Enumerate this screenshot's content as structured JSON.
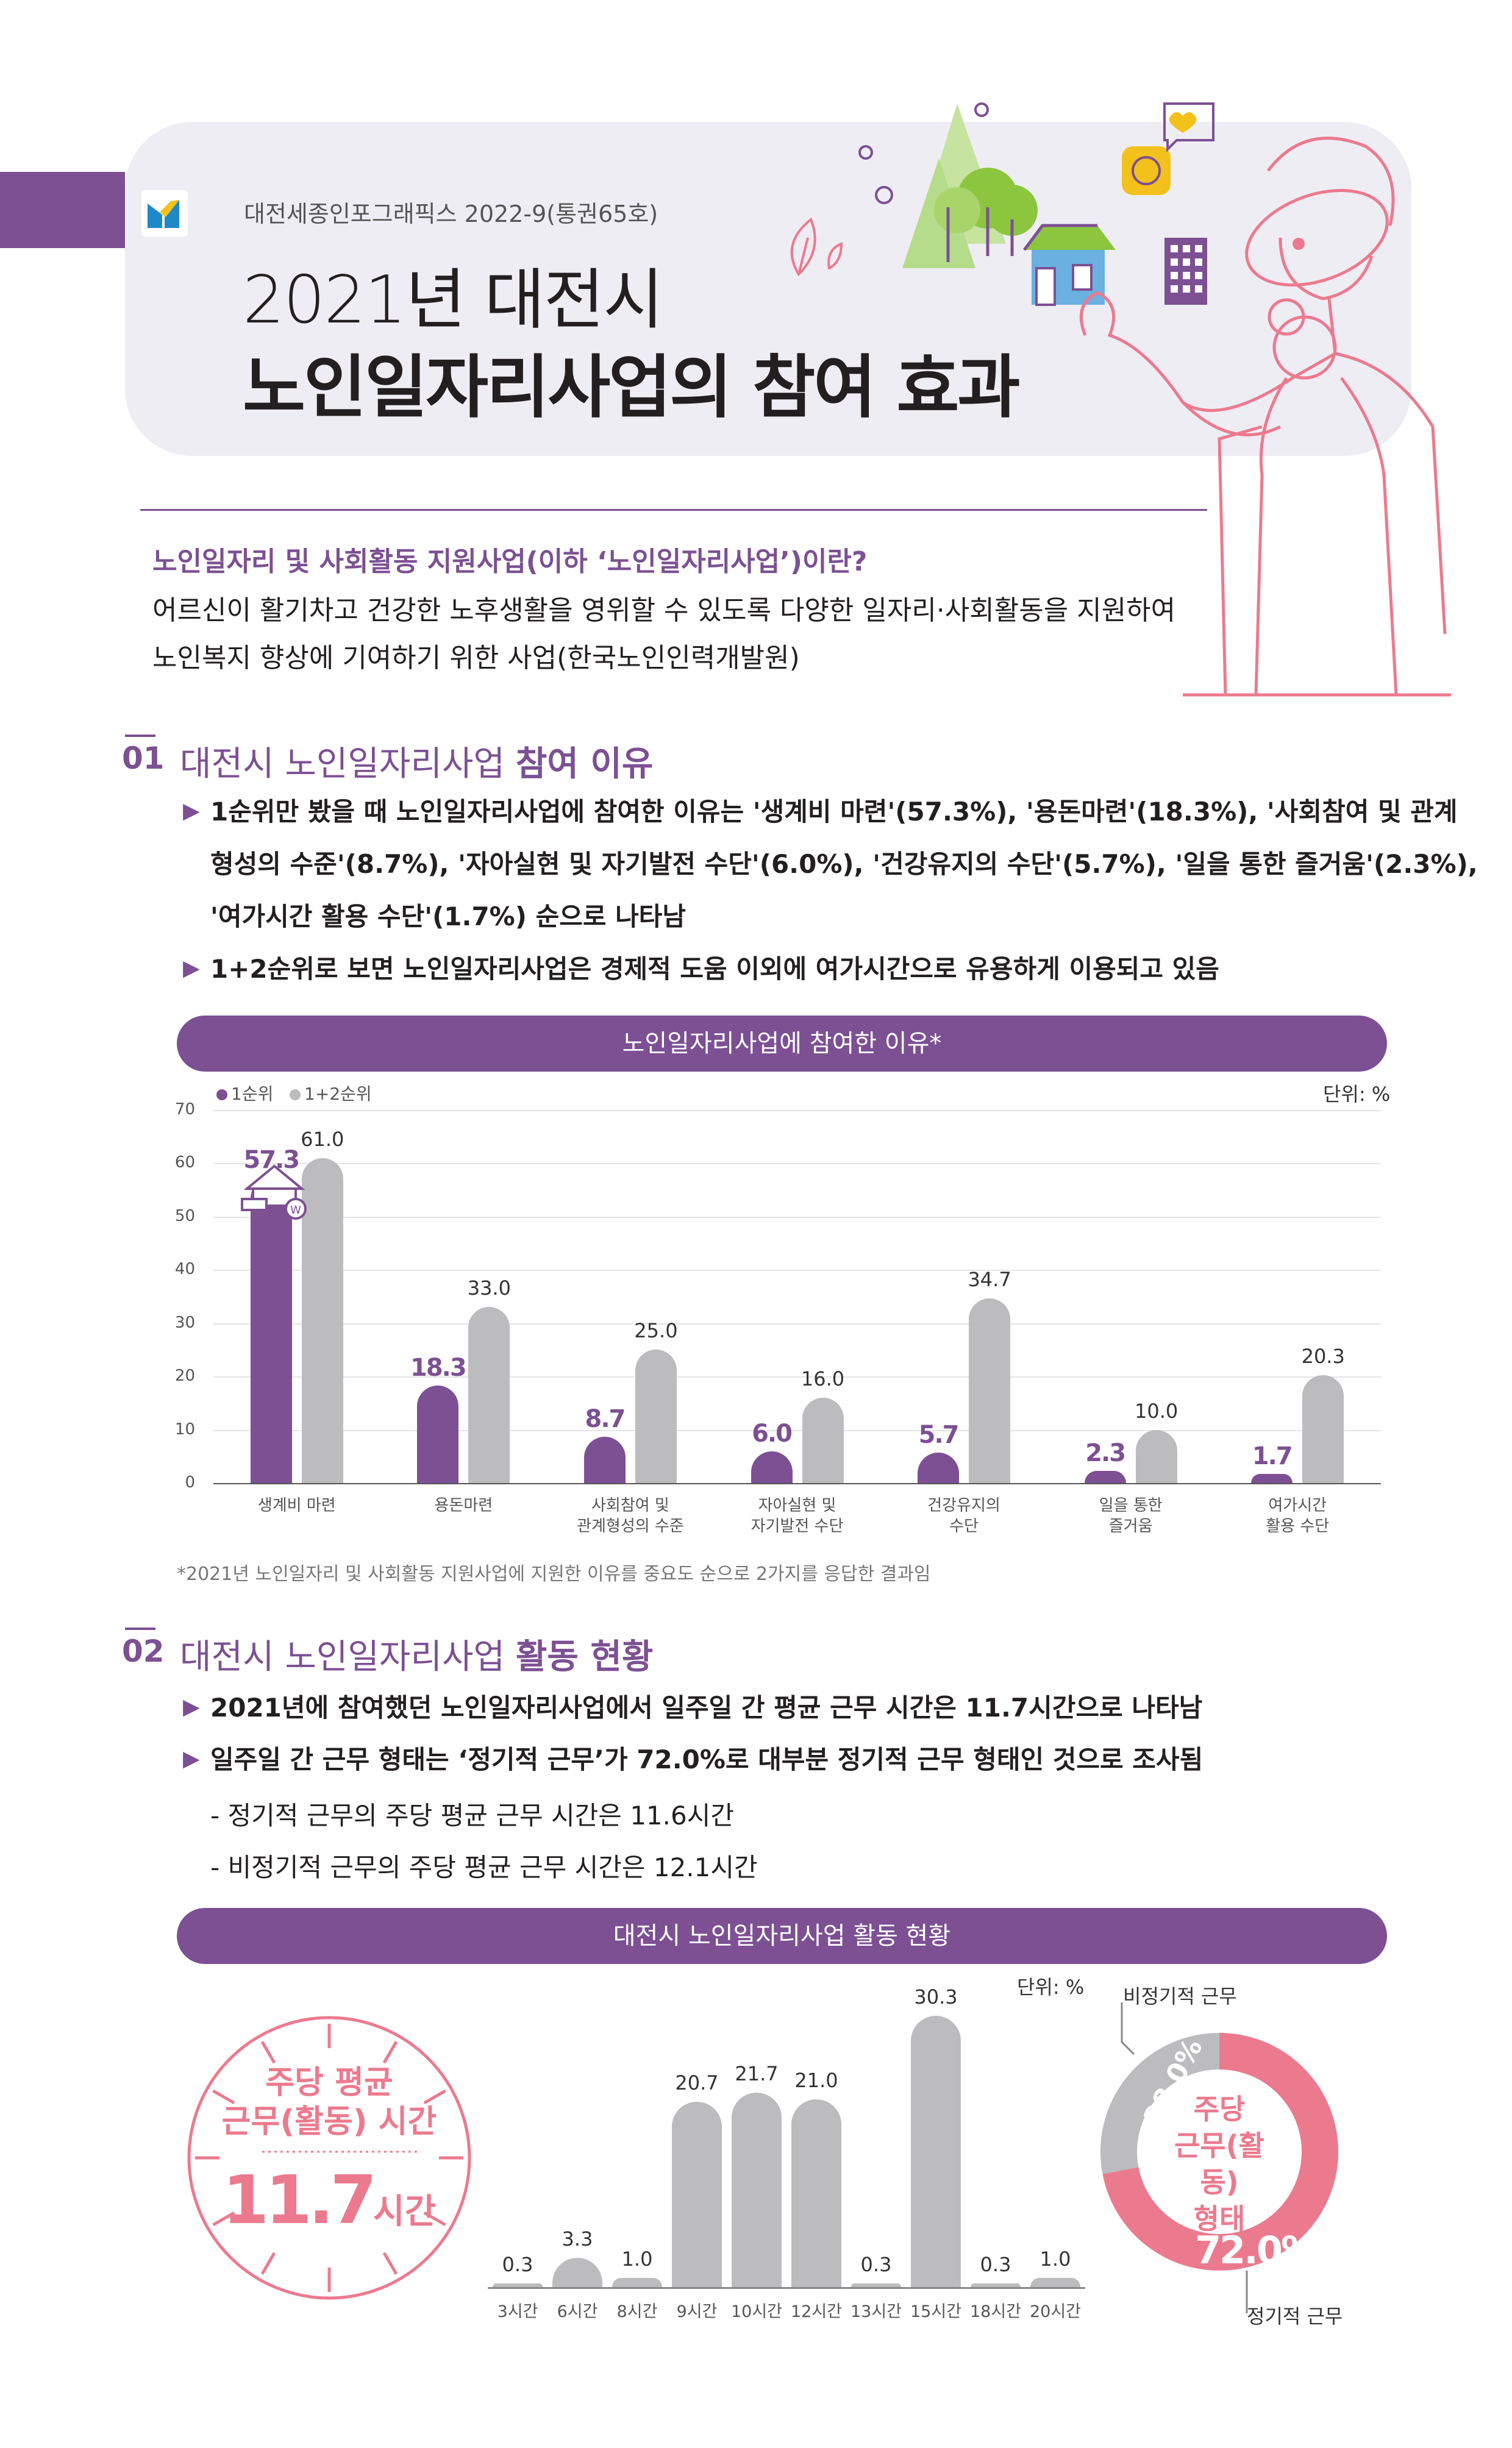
{
  "header": {
    "series": "대전세종인포그래픽스 2022-9(통권65호)",
    "title_line1": "2021년 대전시",
    "title_line2": "노인일자리사업의 참여 효과"
  },
  "intro": {
    "question": "노인일자리 및 사회활동 지원사업(이하 ‘노인일자리사업’)이란?",
    "desc_line1": "어르신이 활기차고 건강한 노후생활을 영위할 수 있도록 다양한 일자리·사회활동을 지원하여",
    "desc_line2": "노인복지 향상에 기여하기 위한 사업(한국노인인력개발원)"
  },
  "section1": {
    "number": "01",
    "title_light": "대전시 노인일자리사업 ",
    "title_bold": "참여 이유",
    "bullet1_line1": "1순위만 봤을 때 노인일자리사업에 참여한 이유는 '생계비 마련'(57.3%), '용돈마련'(18.3%), '사회참여 및 관계",
    "bullet1_line2": "형성의 수준'(8.7%), '자아실현 및 자기발전 수단'(6.0%), '건강유지의 수단'(5.7%), '일을 통한 즐거움'(2.3%),",
    "bullet1_line3": "'여가시간 활용 수단'(1.7%) 순으로 나타남",
    "bullet2": "1+2순위로 보면 노인일자리사업은 경제적 도움 이외에 여가시간으로 유용하게 이용되고 있음",
    "banner": "노인일자리사업에 참여한 이유*",
    "unit": "단위: %",
    "note": "*2021년 노인일자리 및 사회활동 지원사업에 지원한 이유를 중요도 순으로 2가지를 응답한 결과임"
  },
  "section2": {
    "number": "02",
    "title_light": "대전시 노인일자리사업 ",
    "title_bold": "활동 현황",
    "bullet1": "2021년에 참여했던 노인일자리사업에서 일주일 간 평균 근무 시간은 11.7시간으로 나타남",
    "bullet2": "일주일 간 근무 형태는 ‘정기적 근무’가 72.0%로 대부분 정기적 근무 형태인 것으로 조사됨",
    "sub1": "- 정기적 근무의 주당 평균 근무 시간은 11.6시간",
    "sub2": "- 비정기적 근무의 주당 평균 근무 시간은 12.1시간",
    "banner": "대전시 노인일자리사업 활동 현황",
    "clock_label_line1": "주당 평균",
    "clock_label_line2": "근무(활동) 시간",
    "clock_value": "11.7",
    "clock_unit": "시간",
    "hours_unit": "단위: %",
    "donut_center_line1": "주당",
    "donut_center_line2": "근무(활동)",
    "donut_center_line3": "형태",
    "donut_label_irregular": "비정기적 근무",
    "donut_label_regular": "정기적 근무",
    "donut_pct_irregular": "28.0%",
    "donut_pct_regular": "72.0%"
  },
  "colors": {
    "purple": "#7c5093",
    "gray": "#bcbcbe",
    "pink": "#ec7a8e",
    "header_bg": "#efedf4"
  },
  "icons": [
    "logo-icon",
    "house-coin-icon",
    "tree-icon",
    "house-icon",
    "building-icon",
    "heart-bubble-icon",
    "leaf-icon",
    "elderly-people-illustration"
  ],
  "chart_data": [
    {
      "type": "bar",
      "title": "노인일자리사업에 참여한 이유*",
      "categories": [
        "생계비 마련",
        "용돈마련",
        "사회참여 및 관계형성의 수준",
        "자아실현 및 자기발전 수단",
        "건강유지의 수단",
        "일을 통한 즐거움",
        "여가시간 활용 수단"
      ],
      "category_lines": [
        [
          "생계비 마련"
        ],
        [
          "용돈마련"
        ],
        [
          "사회참여 및",
          "관계형성의 수준"
        ],
        [
          "자아실현 및",
          "자기발전 수단"
        ],
        [
          "건강유지의",
          "수단"
        ],
        [
          "일을 통한",
          "즐거움"
        ],
        [
          "여가시간",
          "활용 수단"
        ]
      ],
      "series": [
        {
          "name": "1순위",
          "values": [
            57.3,
            18.3,
            8.7,
            6.0,
            5.7,
            2.3,
            1.7
          ],
          "color": "#7c5093"
        },
        {
          "name": "1+2순위",
          "values": [
            61.0,
            33.0,
            25.0,
            16.0,
            34.7,
            10.0,
            20.3
          ],
          "color": "#bcbcbe"
        }
      ],
      "ylim": [
        0,
        70
      ],
      "yticks": [
        "0",
        "10",
        "20",
        "30",
        "40",
        "50",
        "60",
        "70"
      ],
      "grid": true,
      "legend": "top-left",
      "unit": "단위: %"
    },
    {
      "type": "bar",
      "categories": [
        "3시간",
        "6시간",
        "8시간",
        "9시간",
        "10시간",
        "12시간",
        "13시간",
        "15시간",
        "18시간",
        "20시간"
      ],
      "values": [
        0.3,
        3.3,
        1.0,
        20.7,
        21.7,
        21.0,
        0.3,
        30.3,
        0.3,
        1.0
      ],
      "labels": [
        "0.3",
        "3.3",
        "1.0",
        "20.7",
        "21.7",
        "21.0",
        "0.3",
        "30.3",
        "0.3",
        "1.0"
      ],
      "unit": "단위: %"
    },
    {
      "type": "pie",
      "categories": [
        "정기적 근무",
        "비정기적 근무"
      ],
      "values": [
        72.0,
        28.0
      ],
      "colors": [
        "#ec7a8e",
        "#bcbcbe"
      ]
    }
  ]
}
